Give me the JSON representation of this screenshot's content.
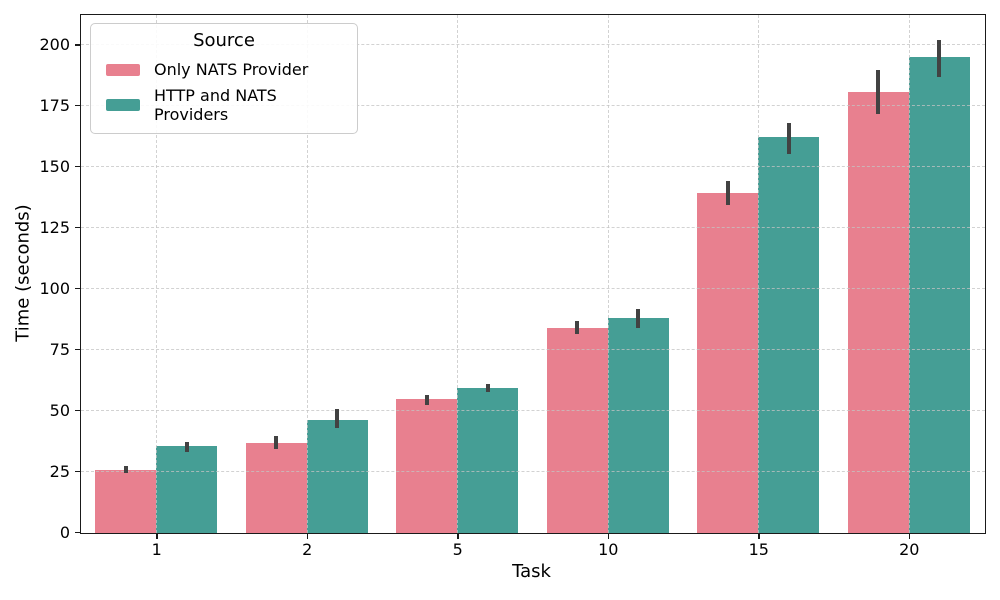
{
  "chart_data": {
    "type": "bar",
    "title": "",
    "xlabel": "Task",
    "ylabel": "Time (seconds)",
    "categories": [
      "1",
      "2",
      "5",
      "10",
      "15",
      "20"
    ],
    "series": [
      {
        "name": "Only NATS Provider",
        "color": "#e8808f",
        "values": [
          26,
          37,
          55,
          84,
          139.5,
          181
        ],
        "ci": [
          [
            24.8,
            27.6
          ],
          [
            34.6,
            39.6
          ],
          [
            52.5,
            56.6
          ],
          [
            81.5,
            87
          ],
          [
            134.5,
            144.5
          ],
          [
            172,
            190
          ]
        ]
      },
      {
        "name": "HTTP and NATS Providers",
        "color": "#459e95",
        "values": [
          35.5,
          46.5,
          59.5,
          88,
          162.5,
          195
        ],
        "ci": [
          [
            33.3,
            37.4
          ],
          [
            43,
            51
          ],
          [
            57.8,
            61
          ],
          [
            84,
            92
          ],
          [
            155.5,
            168
          ],
          [
            187,
            202
          ]
        ]
      }
    ],
    "ylim": [
      0,
      212
    ],
    "yticks": [
      0,
      25,
      50,
      75,
      100,
      125,
      150,
      175,
      200
    ],
    "grid": {
      "style": "dashed",
      "color": "#c4c4c4"
    },
    "legend": {
      "title": "Source",
      "position": "upper left"
    },
    "error_bar_color": "#424242"
  }
}
